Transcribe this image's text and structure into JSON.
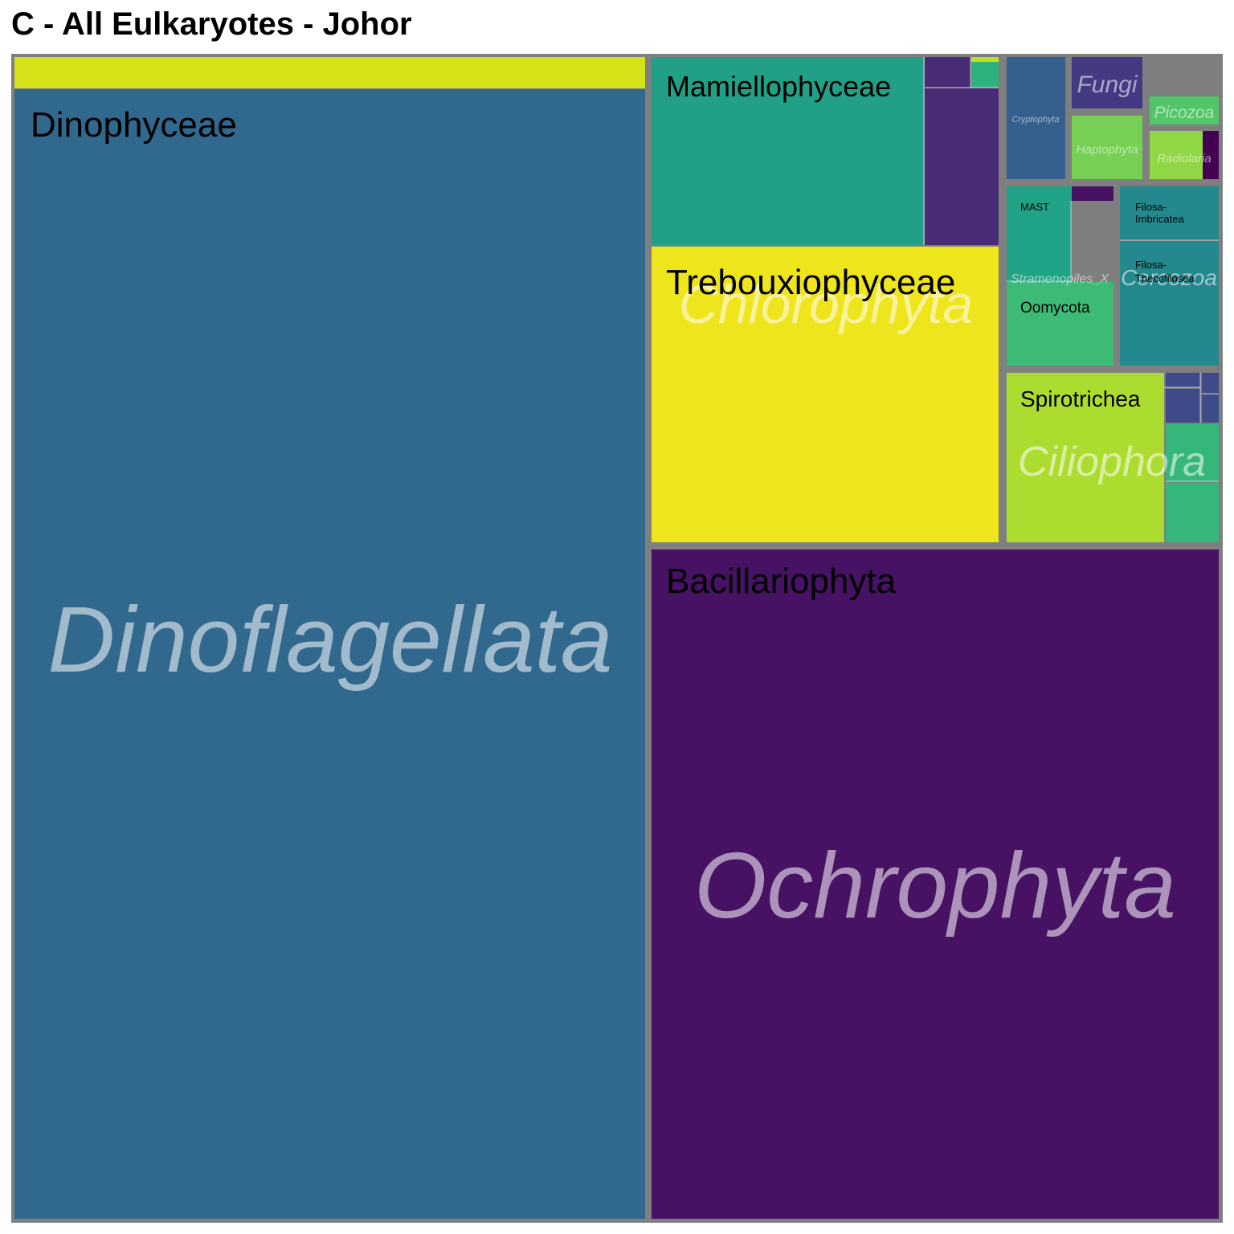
{
  "chart_data": {
    "type": "treemap",
    "title": "C - All Eulkaryotes - Johor",
    "colors": {
      "border": "#7f7f7f",
      "group_label": "#ffffff",
      "class_label": "#000000"
    },
    "phyla": [
      {
        "name": "Dinoflagellata",
        "classes": [
          {
            "name": "",
            "color": "#d6e218"
          },
          {
            "name": "Dinophyceae",
            "color": "#31688e"
          }
        ]
      },
      {
        "name": "Chlorophyta",
        "classes": [
          {
            "name": "Mamiellophyceae",
            "color": "#21a087"
          },
          {
            "name": "",
            "color": "#482d76"
          },
          {
            "name": "",
            "color": "#482d76"
          },
          {
            "name": "",
            "color": "#2db27d"
          },
          {
            "name": "",
            "color": "#bddf26"
          },
          {
            "name": "Trebouxiophyceae",
            "color": "#efe51c"
          }
        ]
      },
      {
        "name": "Ochrophyta",
        "classes": [
          {
            "name": "Bacillariophyta",
            "color": "#471164"
          }
        ]
      },
      {
        "name": "Cryptophyta",
        "classes": [
          {
            "name": "",
            "color": "#355f8d"
          }
        ]
      },
      {
        "name": "Fungi",
        "classes": [
          {
            "name": "",
            "color": "#443a83"
          }
        ]
      },
      {
        "name": "Haptophyta",
        "classes": [
          {
            "name": "",
            "color": "#75d054"
          }
        ]
      },
      {
        "name": "Picozoa",
        "classes": [
          {
            "name": "",
            "color": "#52c569"
          }
        ]
      },
      {
        "name": "Radiolaria",
        "classes": [
          {
            "name": "",
            "color": "#8fd744"
          },
          {
            "name": "",
            "color": "#440154"
          }
        ]
      },
      {
        "name": "Stramenopiles_X",
        "classes": [
          {
            "name": "MAST",
            "color": "#20a386"
          },
          {
            "name": "",
            "color": "#471164"
          },
          {
            "name": "Oomycota",
            "color": "#3bbb75"
          }
        ]
      },
      {
        "name": "Cercozoa",
        "classes": [
          {
            "name": "Filosa-Imbricatea",
            "color": "#23898e"
          },
          {
            "name": "Filosa-Thecofilosea",
            "color": "#23898e"
          }
        ]
      },
      {
        "name": "Ciliophora",
        "classes": [
          {
            "name": "Spirotrichea",
            "color": "#addc30"
          },
          {
            "name": "",
            "color": "#3e4a89"
          },
          {
            "name": "",
            "color": "#3e4a89"
          },
          {
            "name": "",
            "color": "#3e4a89"
          },
          {
            "name": "",
            "color": "#3e4a89"
          },
          {
            "name": "",
            "color": "#35b779"
          },
          {
            "name": "",
            "color": "#35b779"
          }
        ]
      }
    ]
  }
}
